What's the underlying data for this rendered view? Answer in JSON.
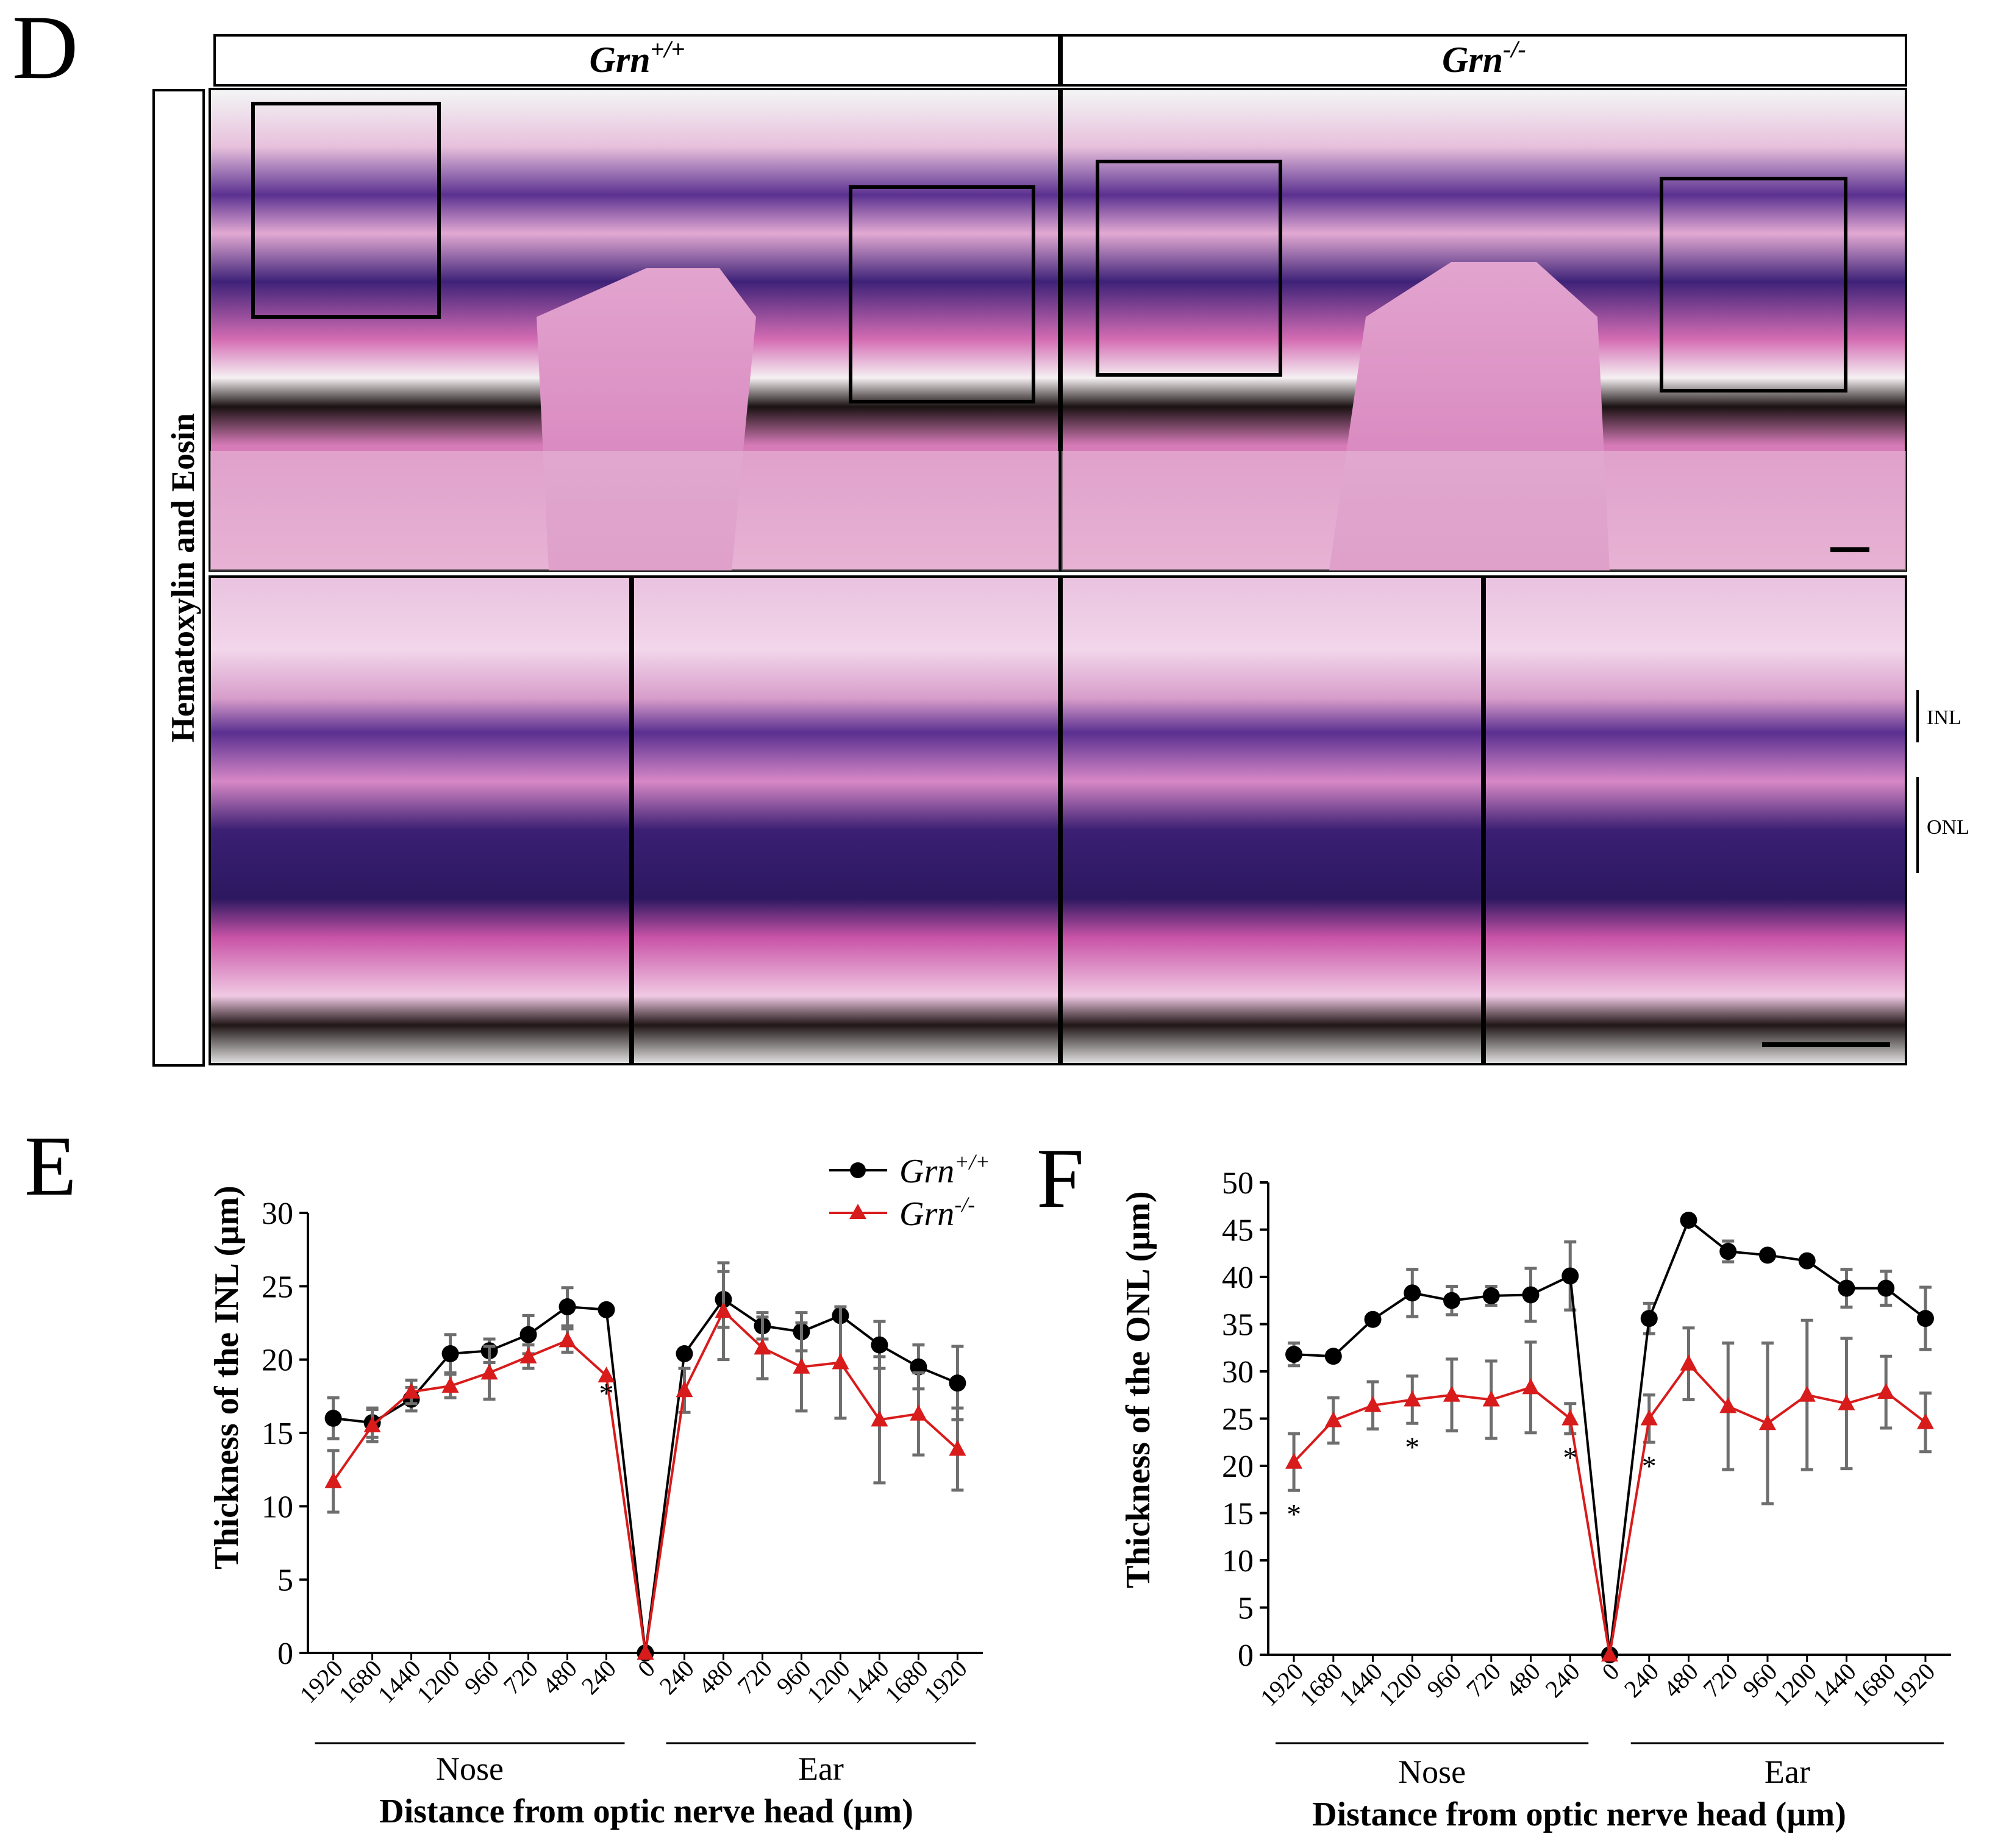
{
  "panelD": {
    "letter": "D",
    "headers": [
      {
        "gene": "Grn",
        "sup": "+/+"
      },
      {
        "gene": "Grn",
        "sup": "-/-"
      }
    ],
    "row_label": "Hematoxylin and Eosin",
    "layer_labels": [
      "INL",
      "ONL"
    ]
  },
  "legend": {
    "entries": [
      {
        "gene": "Grn",
        "sup": "+/+",
        "color": "#000000",
        "marker": "circle"
      },
      {
        "gene": "Grn",
        "sup": "-/-",
        "color": "#d81b1b",
        "marker": "triangle"
      }
    ]
  },
  "colors": {
    "wt": "#000000",
    "ko": "#d81b1b",
    "errbar": "#6e6e6e"
  },
  "chart_data": [
    {
      "type": "line",
      "letter": "E",
      "ylabel": "Thickness of the INL (µm)",
      "xlabel": "Distance from optic nerve head (µm)",
      "ylim": [
        0,
        30
      ],
      "yticks": [
        0,
        5,
        10,
        15,
        20,
        25,
        30
      ],
      "categories": [
        "1920",
        "1680",
        "1440",
        "1200",
        "960",
        "720",
        "480",
        "240",
        "0",
        "240",
        "480",
        "720",
        "960",
        "1200",
        "1440",
        "1680",
        "1920"
      ],
      "groups": [
        "Nose",
        "Ear"
      ],
      "series": [
        {
          "name": "Grn+/+",
          "values": [
            16.0,
            15.7,
            17.3,
            20.4,
            20.6,
            21.7,
            23.6,
            23.4,
            0,
            20.4,
            24.1,
            22.3,
            21.9,
            23.0,
            21.0,
            19.5,
            18.4
          ],
          "errors": [
            1.4,
            1.0,
            0.8,
            1.3,
            0.8,
            1.3,
            1.3,
            0,
            0,
            0,
            1.9,
            0.9,
            1.3,
            0,
            1.6,
            1.5,
            2.5
          ]
        },
        {
          "name": "Grn-/-",
          "values": [
            11.7,
            15.5,
            17.8,
            18.2,
            19.1,
            20.2,
            21.3,
            18.9,
            0,
            17.9,
            23.3,
            20.8,
            19.5,
            19.8,
            15.9,
            16.3,
            13.9
          ],
          "errors": [
            2.1,
            1.1,
            0.8,
            0.8,
            1.8,
            0.8,
            0.8,
            0,
            0,
            1.5,
            3.3,
            2.1,
            3.0,
            3.8,
            4.3,
            2.8,
            2.8
          ]
        }
      ],
      "annotations": [
        {
          "text": "*",
          "index": 7
        }
      ]
    },
    {
      "type": "line",
      "letter": "F",
      "ylabel": "Thickness of the ONL (µm)",
      "xlabel": "Distance from optic nerve head (µm)",
      "ylim": [
        0,
        50
      ],
      "yticks": [
        0,
        5,
        10,
        15,
        20,
        25,
        30,
        35,
        40,
        45,
        50
      ],
      "categories": [
        "1920",
        "1680",
        "1440",
        "1200",
        "960",
        "720",
        "480",
        "240",
        "0",
        "240",
        "480",
        "720",
        "960",
        "1200",
        "1440",
        "1680",
        "1920"
      ],
      "groups": [
        "Nose",
        "Ear"
      ],
      "series": [
        {
          "name": "Grn+/+",
          "values": [
            31.8,
            31.6,
            35.5,
            38.3,
            37.5,
            38.0,
            38.1,
            40.1,
            0,
            35.6,
            46.0,
            42.7,
            42.3,
            41.7,
            38.8,
            38.8,
            35.6
          ],
          "errors": [
            1.2,
            0,
            0,
            2.5,
            1.5,
            1.0,
            2.8,
            3.6,
            0,
            1.6,
            0,
            1.1,
            0,
            0,
            2.0,
            1.8,
            3.3
          ]
        },
        {
          "name": "Grn-/-",
          "values": [
            20.4,
            24.8,
            26.4,
            27.0,
            27.5,
            27.0,
            28.3,
            25.0,
            0,
            25.0,
            30.8,
            26.3,
            24.5,
            27.5,
            26.6,
            27.8,
            24.6
          ],
          "errors": [
            3.0,
            2.4,
            2.5,
            2.5,
            3.8,
            4.1,
            4.8,
            1.6,
            0,
            2.5,
            3.8,
            6.7,
            8.5,
            7.9,
            6.9,
            3.8,
            3.1
          ]
        }
      ],
      "annotations": [
        {
          "text": "*",
          "index": 0
        },
        {
          "text": "*",
          "index": 3
        },
        {
          "text": "*",
          "index": 7
        },
        {
          "text": "*",
          "index": 9
        }
      ]
    }
  ]
}
